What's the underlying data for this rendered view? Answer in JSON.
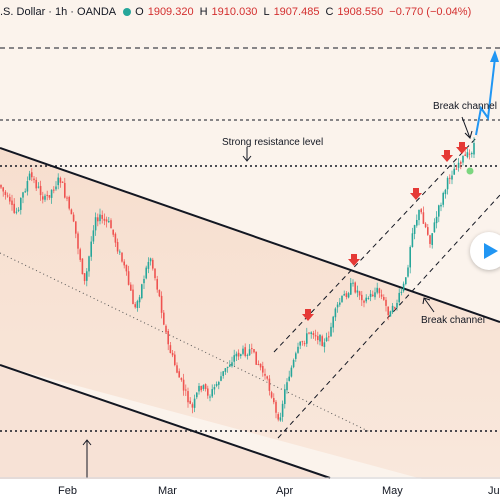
{
  "header": {
    "title": ".S. Dollar · 1h · OANDA",
    "open_label": "O",
    "open": "1909.320",
    "high_label": "H",
    "high": "1910.030",
    "low_label": "L",
    "low": "1907.485",
    "close_label": "C",
    "close": "1908.550",
    "change": "−0.770 (−0.04%)"
  },
  "chart_data": {
    "type": "candlestick",
    "x_ticks": [
      "Feb",
      "Mar",
      "Apr",
      "May",
      "Ju"
    ],
    "annotations": {
      "strong_resistance": "Strong resistance level",
      "break_channel_lower": "Break channel",
      "break_channel_upper": "Break channel"
    },
    "colors": {
      "background": "#fbf3ec",
      "channel_fill": "#f5d9c6",
      "up_candle": "#26a69a",
      "down_candle": "#ef5350",
      "arrow_red": "#e53935",
      "projection_blue": "#2196f3"
    },
    "red_arrow_markers": 5,
    "grid": false
  }
}
